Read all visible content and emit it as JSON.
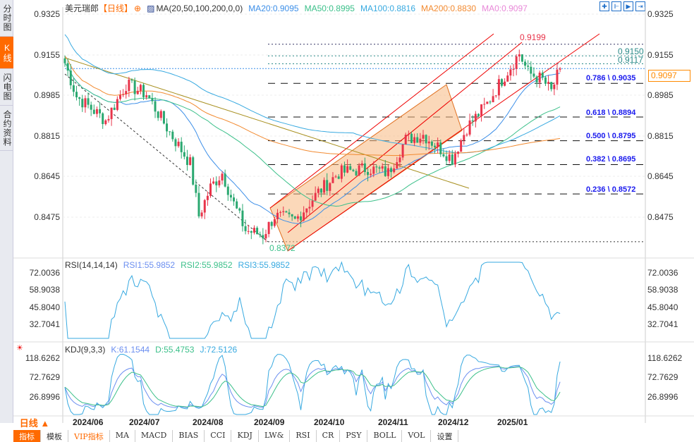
{
  "sidebar": {
    "items": [
      "分时图",
      "K线图",
      "闪电图",
      "合约资料"
    ],
    "active": 1
  },
  "header": {
    "symbol": "美元瑞郎",
    "period": "【日线】",
    "indicator": "MA(20,50,100,200,0,0)",
    "ma20": "MA20:0.9095",
    "ma50": "MA50:0.8995",
    "ma100": "MA100:0.8816",
    "ma200": "MA200:0.8830",
    "ma0": "MA0:0.9097"
  },
  "colors": {
    "up": "#e8344a",
    "down": "#2aa870",
    "ma20": "#3d8fe8",
    "ma50": "#3cc08a",
    "ma100": "#37a9e0",
    "ma200": "#f28a30",
    "ma0": "#e888d8",
    "fib": "#1a1aee",
    "accent": "#ff6a00"
  },
  "price_axis": [
    "0.9325",
    "0.9155",
    "0.8985",
    "0.8815",
    "0.8645",
    "0.8475"
  ],
  "current_price": "0.9097",
  "last_price_label": "0.9155",
  "price_levels": {
    "high": "0.9199",
    "l1": "0.9150",
    "l2": "0.9117",
    "low": "0.8372"
  },
  "fib": [
    "0.786 \\ 0.9035",
    "0.618 \\ 0.8894",
    "0.500 \\ 0.8795",
    "0.382 \\ 0.8695",
    "0.236 \\ 0.8572"
  ],
  "rsi": {
    "title": "RSI(14,14,14)",
    "rsi1": "RSI1:55.9852",
    "rsi2": "RSI2:55.9852",
    "rsi3": "RSI3:55.9852",
    "axis": [
      "72.0036",
      "58.9038",
      "45.8040",
      "32.7041"
    ]
  },
  "kdj": {
    "title": "KDJ(9,3,3)",
    "k": "K:61.1544",
    "d": "D:55.4753",
    "j": "J:72.5126",
    "axis": [
      "118.6262",
      "72.7629",
      "26.8996"
    ]
  },
  "dates": [
    "2024/06",
    "2024/07",
    "2024/08",
    "2024/09",
    "2024/10",
    "2024/11",
    "2024/12",
    "2025/01"
  ],
  "period_selector": "日线 ▲",
  "tabs": [
    "指标",
    "模板",
    "VIP指标",
    "MA",
    "MACD",
    "BIAS",
    "CCI",
    "KDJ",
    "LW&",
    "RSI",
    "CR",
    "PSY",
    "BOLL",
    "VOL",
    "设置"
  ],
  "price_path": [
    [
      0,
      0.912
    ],
    [
      4,
      0.898
    ],
    [
      14,
      0.888
    ],
    [
      21,
      0.903
    ],
    [
      28,
      0.899
    ],
    [
      36,
      0.883
    ],
    [
      43,
      0.87
    ],
    [
      46,
      0.848
    ],
    [
      50,
      0.86
    ],
    [
      54,
      0.866
    ],
    [
      58,
      0.853
    ],
    [
      62,
      0.842
    ],
    [
      68,
      0.84
    ],
    [
      72,
      0.848
    ],
    [
      79,
      0.846
    ],
    [
      87,
      0.858
    ],
    [
      94,
      0.866
    ],
    [
      104,
      0.868
    ],
    [
      111,
      0.866
    ],
    [
      117,
      0.88
    ],
    [
      123,
      0.882
    ],
    [
      129,
      0.876
    ],
    [
      133,
      0.872
    ],
    [
      138,
      0.885
    ],
    [
      145,
      0.895
    ],
    [
      150,
      0.905
    ],
    [
      156,
      0.916
    ],
    [
      159,
      0.908
    ],
    [
      164,
      0.905
    ],
    [
      167,
      0.9
    ],
    [
      170,
      0.9097
    ]
  ]
}
